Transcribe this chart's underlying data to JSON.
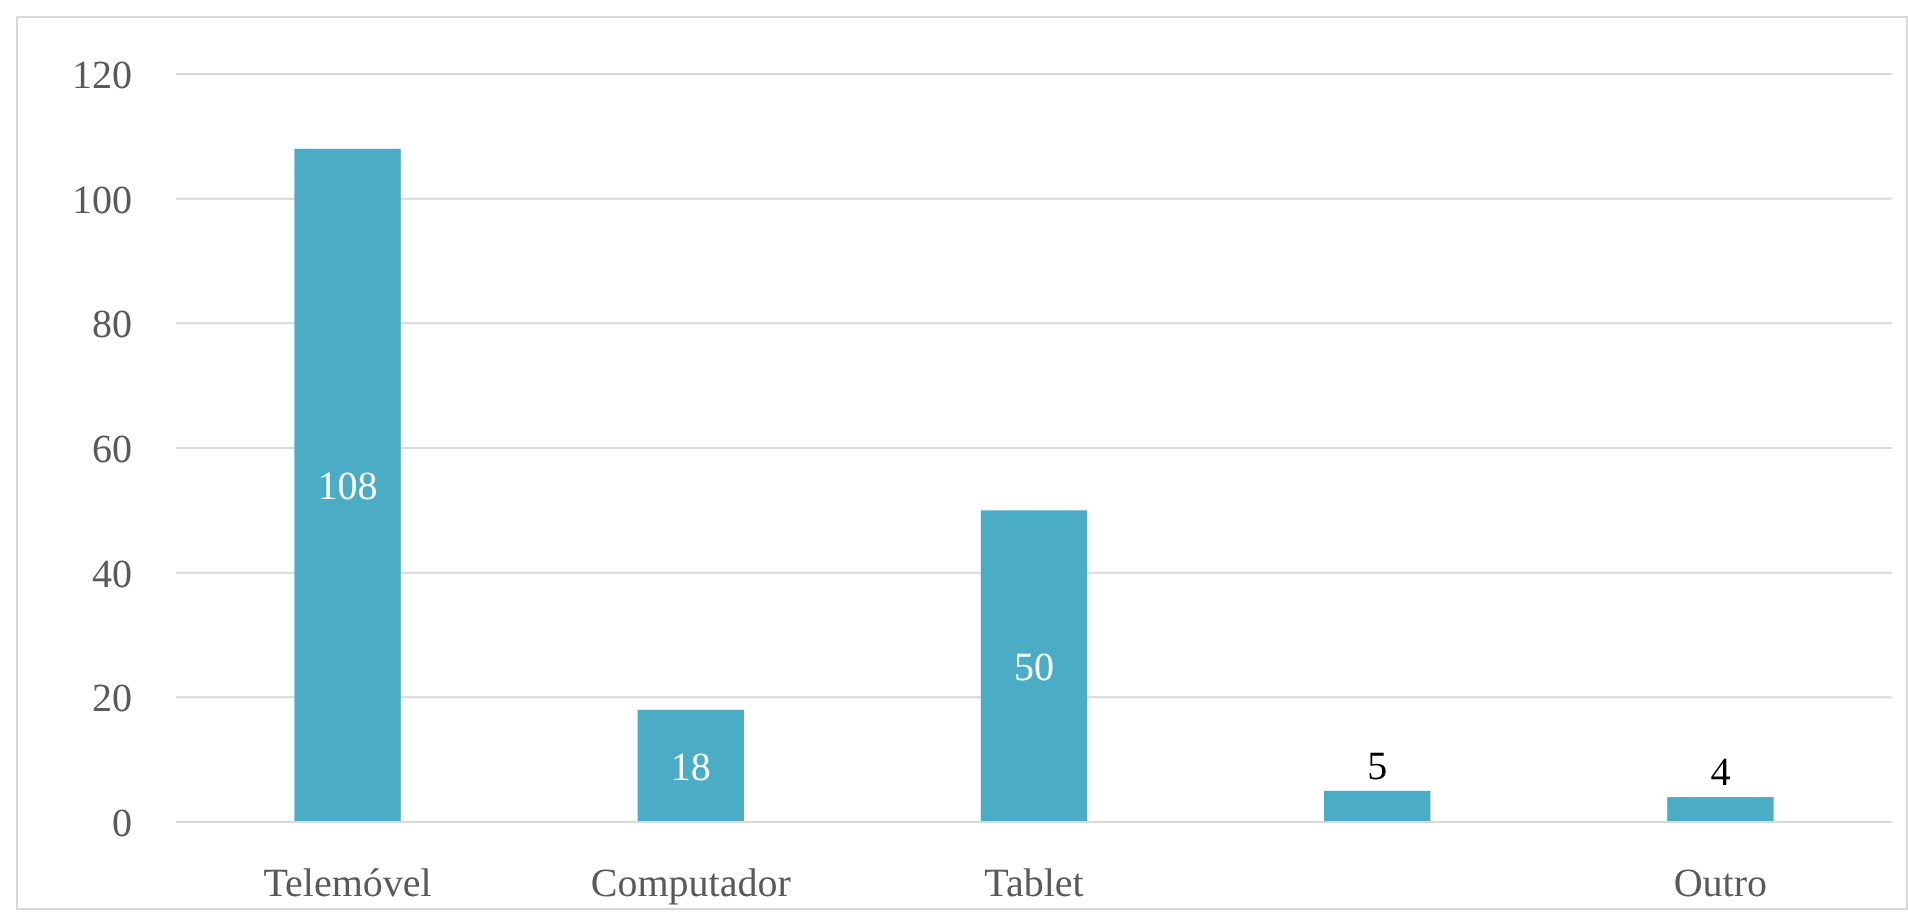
{
  "chart_data": {
    "type": "bar",
    "categories": [
      "Telemóvel",
      "Computador",
      "Tablet",
      null,
      "Outro"
    ],
    "values": [
      108,
      18,
      50,
      5,
      4
    ],
    "color": "#4bacc6",
    "ylim": [
      0,
      120
    ],
    "yticks": [
      0,
      20,
      40,
      60,
      80,
      100,
      120
    ],
    "grid": "y",
    "data_labels": true
  }
}
